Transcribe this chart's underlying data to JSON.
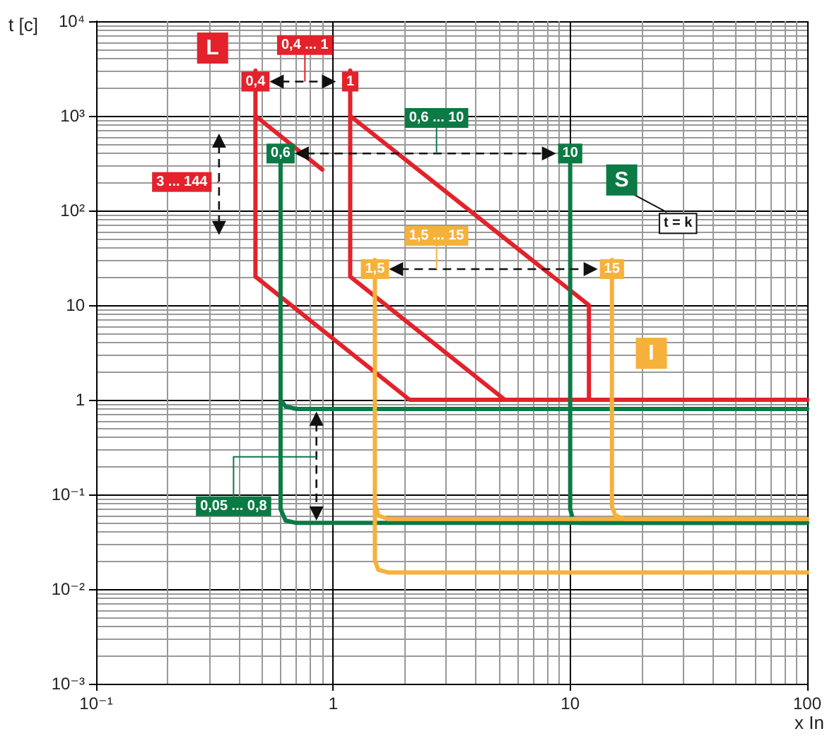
{
  "chart_data": {
    "type": "line",
    "xlabel": "x In",
    "ylabel": "t [c]",
    "log": "xy",
    "grid": true,
    "marker": "none",
    "line_style": "solid",
    "xlim": [
      0.1,
      100
    ],
    "ylim": [
      0.001,
      10000
    ],
    "xticks": [
      {
        "value": 0.1,
        "label": "10⁻¹"
      },
      1,
      10,
      100
    ],
    "yticks": [
      {
        "value": 0.001,
        "label": "10⁻³"
      },
      {
        "value": 0.01,
        "label": "10⁻²"
      },
      {
        "value": 0.1,
        "label": "10⁻¹"
      },
      1,
      10,
      {
        "value": 100,
        "label": "10²"
      },
      {
        "value": 1000,
        "label": "10³"
      },
      {
        "value": 10000,
        "label": "10⁴"
      }
    ],
    "series": [
      {
        "color": "#e3222b",
        "x": [
          0.47,
          0.47,
          2.1,
          12
        ],
        "values": [
          3000,
          20,
          1,
          1
        ]
      },
      {
        "color": "#e3222b",
        "x": [
          0.47,
          0.9
        ],
        "values": [
          1000,
          270
        ]
      },
      {
        "color": "#e3222b",
        "x": [
          1.18,
          1.18,
          5.3,
          100
        ],
        "values": [
          3000,
          20,
          1,
          1
        ]
      },
      {
        "color": "#e3222b",
        "x": [
          1.18,
          12,
          12,
          100
        ],
        "values": [
          1000,
          10,
          1,
          1
        ]
      },
      {
        "color": "#0b7a45",
        "x": [
          0.6,
          0.6,
          0.63,
          0.7,
          100
        ],
        "values": [
          400,
          0.07,
          0.053,
          0.05,
          0.05
        ]
      },
      {
        "color": "#0b7a45",
        "x": [
          0.6,
          0.63,
          0.7,
          100
        ],
        "values": [
          1,
          0.85,
          0.8,
          0.8
        ]
      },
      {
        "color": "#0b7a45",
        "x": [
          10,
          10,
          10.3,
          11,
          100
        ],
        "values": [
          400,
          0.07,
          0.053,
          0.05,
          0.05
        ]
      },
      {
        "color": "#f6b13b",
        "x": [
          1.5,
          1.5,
          1.55,
          1.7,
          100
        ],
        "values": [
          30,
          0.02,
          0.016,
          0.015,
          0.015
        ]
      },
      {
        "color": "#f6b13b",
        "x": [
          1.5,
          1.55,
          1.7,
          100
        ],
        "values": [
          0.08,
          0.06,
          0.055,
          0.055
        ]
      },
      {
        "color": "#f6b13b",
        "x": [
          15,
          15,
          15.5,
          17,
          100
        ],
        "values": [
          30,
          0.075,
          0.06,
          0.055,
          0.055
        ]
      }
    ],
    "annotations": [
      "0,4 ... 1",
      {
        "text": "0,4",
        "x": 0.47,
        "y": 2300
      },
      {
        "text": "1",
        "x": 1.18,
        "y": 2300
      },
      "3 ... 144",
      "0,6 ... 10",
      {
        "text": "0,6",
        "x": 0.6,
        "y": 400
      },
      {
        "text": "10",
        "x": 10,
        "y": 400
      },
      "1,5 ... 15",
      {
        "text": "1,5",
        "x": 1.5,
        "y": 24
      },
      {
        "text": "15",
        "x": 15,
        "y": 24
      },
      "0,05 ... 0,8",
      "t = k",
      "L",
      "S",
      "I"
    ]
  }
}
